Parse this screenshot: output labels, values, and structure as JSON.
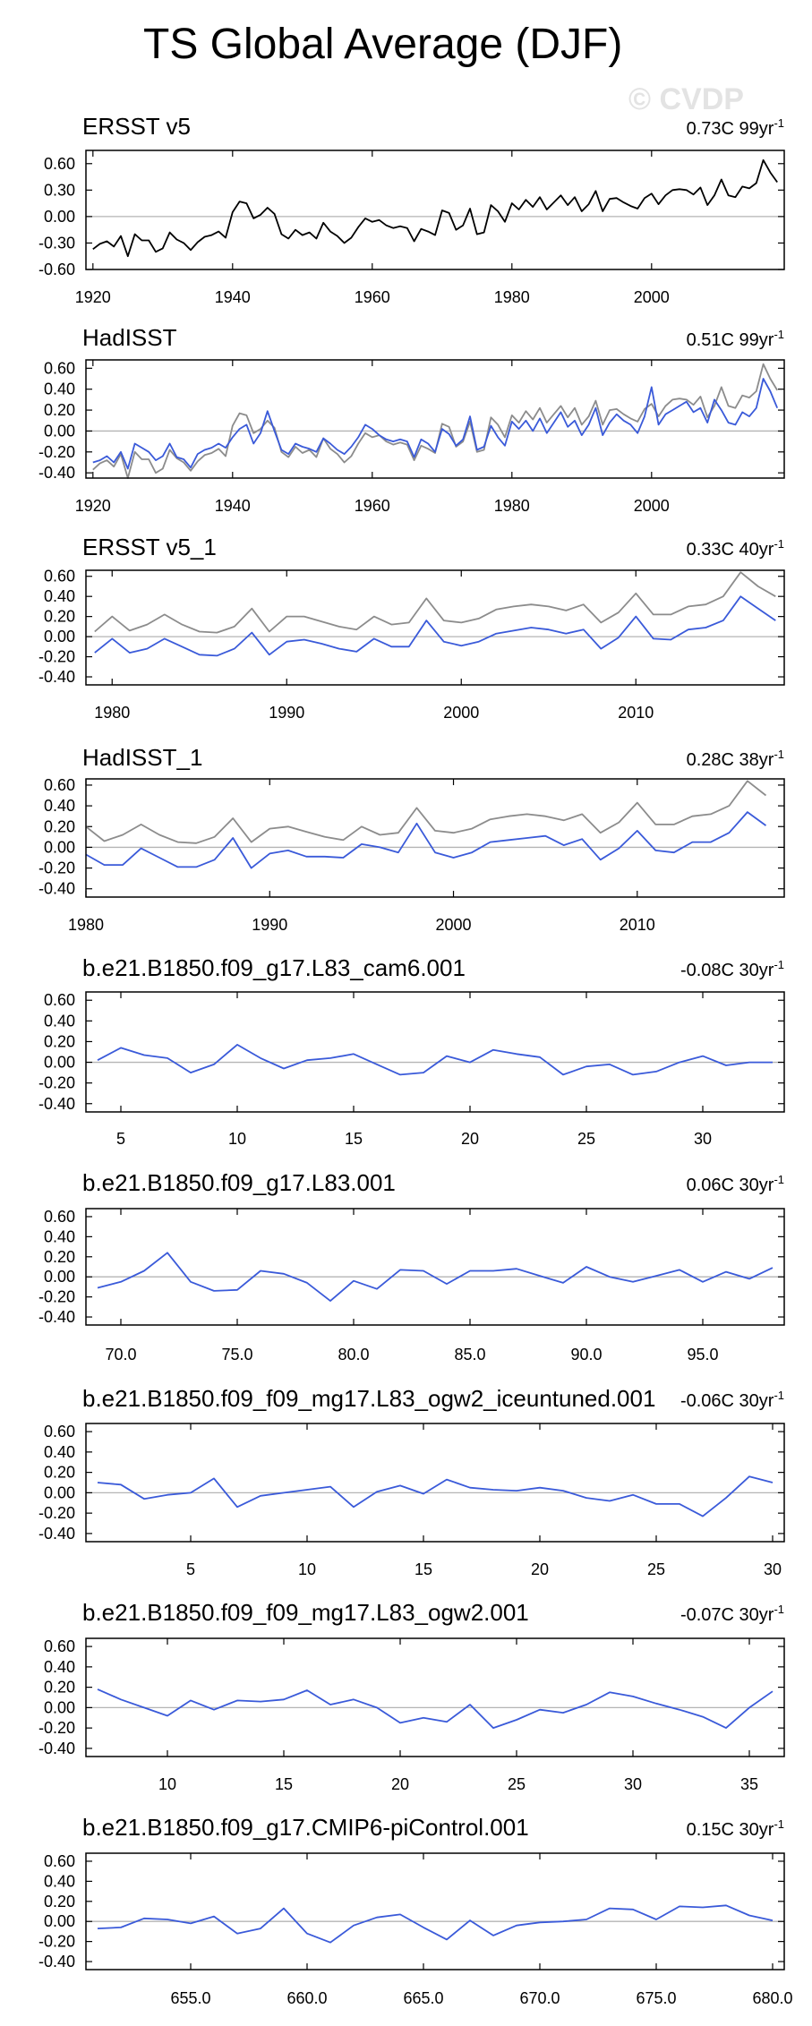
{
  "figure": {
    "title": "TS Global Average (DJF)",
    "watermark": "© CVDP"
  },
  "colors": {
    "observed": "#000000",
    "model": "#3a5ad9",
    "reference": "#8c8c8c",
    "zero_line": "#b4b4b4"
  },
  "chart_data": [
    {
      "type": "line",
      "title": "ERSST v5",
      "trend_value": "0.73C 99yr",
      "trend_exp": "-1",
      "xlim": [
        1919,
        2019
      ],
      "ylim": [
        -0.6,
        0.75
      ],
      "xticks": [
        1920,
        1940,
        1960,
        1980,
        2000
      ],
      "xtick_labels": [
        "1920",
        "1940",
        "1960",
        "1980",
        "2000"
      ],
      "yticks": [
        0.6,
        0.3,
        0.0,
        -0.3,
        -0.6
      ],
      "ytick_labels": [
        "0.60",
        "0.30",
        "0.00",
        "-0.30",
        "-0.60"
      ],
      "series": [
        {
          "color": "#000000",
          "x_start": 1920,
          "values": [
            -0.37,
            -0.31,
            -0.28,
            -0.34,
            -0.22,
            -0.45,
            -0.2,
            -0.27,
            -0.27,
            -0.4,
            -0.36,
            -0.18,
            -0.26,
            -0.3,
            -0.38,
            -0.29,
            -0.23,
            -0.21,
            -0.17,
            -0.24,
            0.05,
            0.17,
            0.15,
            -0.02,
            0.02,
            0.1,
            0.03,
            -0.2,
            -0.25,
            -0.15,
            -0.21,
            -0.18,
            -0.25,
            -0.07,
            -0.17,
            -0.22,
            -0.3,
            -0.24,
            -0.12,
            -0.02,
            -0.06,
            -0.04,
            -0.1,
            -0.13,
            -0.11,
            -0.13,
            -0.28,
            -0.14,
            -0.17,
            -0.21,
            0.07,
            0.04,
            -0.15,
            -0.1,
            0.09,
            -0.2,
            -0.18,
            0.13,
            0.06,
            -0.06,
            0.15,
            0.08,
            0.19,
            0.11,
            0.22,
            0.08,
            0.16,
            0.24,
            0.13,
            0.22,
            0.06,
            0.14,
            0.29,
            0.06,
            0.2,
            0.21,
            0.16,
            0.12,
            0.09,
            0.21,
            0.26,
            0.14,
            0.24,
            0.3,
            0.31,
            0.3,
            0.25,
            0.33,
            0.13,
            0.24,
            0.42,
            0.24,
            0.22,
            0.34,
            0.32,
            0.38,
            0.64,
            0.5,
            0.39
          ]
        }
      ]
    },
    {
      "type": "line",
      "title": "HadISST",
      "trend_value": "0.51C 99yr",
      "trend_exp": "-1",
      "xlim": [
        1919,
        2019
      ],
      "ylim": [
        -0.45,
        0.68
      ],
      "xticks": [
        1920,
        1940,
        1960,
        1980,
        2000
      ],
      "xtick_labels": [
        "1920",
        "1940",
        "1960",
        "1980",
        "2000"
      ],
      "yticks": [
        0.6,
        0.4,
        0.2,
        0.0,
        -0.2,
        -0.4
      ],
      "ytick_labels": [
        "0.60",
        "0.40",
        "0.20",
        "0.00",
        "-0.20",
        "-0.40"
      ],
      "series": [
        {
          "color": "#8c8c8c",
          "x_start": 1920,
          "values": [
            -0.37,
            -0.31,
            -0.28,
            -0.34,
            -0.22,
            -0.45,
            -0.2,
            -0.27,
            -0.27,
            -0.4,
            -0.36,
            -0.18,
            -0.26,
            -0.3,
            -0.38,
            -0.29,
            -0.23,
            -0.21,
            -0.17,
            -0.24,
            0.05,
            0.17,
            0.15,
            -0.02,
            0.02,
            0.1,
            0.03,
            -0.2,
            -0.25,
            -0.15,
            -0.21,
            -0.18,
            -0.25,
            -0.07,
            -0.17,
            -0.22,
            -0.3,
            -0.24,
            -0.12,
            -0.02,
            -0.06,
            -0.04,
            -0.1,
            -0.13,
            -0.11,
            -0.13,
            -0.28,
            -0.14,
            -0.17,
            -0.21,
            0.07,
            0.04,
            -0.15,
            -0.1,
            0.09,
            -0.2,
            -0.18,
            0.13,
            0.06,
            -0.06,
            0.15,
            0.08,
            0.19,
            0.11,
            0.22,
            0.08,
            0.16,
            0.24,
            0.13,
            0.22,
            0.06,
            0.14,
            0.29,
            0.06,
            0.2,
            0.21,
            0.16,
            0.12,
            0.09,
            0.21,
            0.26,
            0.14,
            0.24,
            0.3,
            0.31,
            0.3,
            0.25,
            0.33,
            0.13,
            0.24,
            0.42,
            0.24,
            0.22,
            0.34,
            0.32,
            0.38,
            0.64,
            0.5,
            0.39
          ]
        },
        {
          "color": "#3a5ad9",
          "x_start": 1920,
          "values": [
            -0.3,
            -0.28,
            -0.24,
            -0.3,
            -0.2,
            -0.36,
            -0.12,
            -0.16,
            -0.2,
            -0.28,
            -0.24,
            -0.12,
            -0.25,
            -0.27,
            -0.35,
            -0.22,
            -0.18,
            -0.16,
            -0.12,
            -0.16,
            -0.06,
            0.02,
            0.06,
            -0.12,
            -0.02,
            0.19,
            0.0,
            -0.18,
            -0.22,
            -0.12,
            -0.15,
            -0.17,
            -0.2,
            -0.07,
            -0.12,
            -0.18,
            -0.22,
            -0.15,
            -0.06,
            0.06,
            0.02,
            -0.04,
            -0.08,
            -0.1,
            -0.08,
            -0.1,
            -0.25,
            -0.08,
            -0.12,
            -0.2,
            0.02,
            -0.03,
            -0.14,
            -0.08,
            0.14,
            -0.18,
            -0.15,
            0.05,
            -0.06,
            -0.14,
            0.09,
            0.02,
            0.1,
            0.0,
            0.12,
            -0.02,
            0.08,
            0.18,
            0.04,
            0.1,
            -0.04,
            0.06,
            0.22,
            -0.04,
            0.08,
            0.16,
            0.1,
            0.06,
            -0.02,
            0.14,
            0.42,
            0.06,
            0.16,
            0.2,
            0.24,
            0.28,
            0.18,
            0.22,
            0.08,
            0.3,
            0.2,
            0.08,
            0.06,
            0.18,
            0.14,
            0.22,
            0.5,
            0.38,
            0.22
          ]
        }
      ]
    },
    {
      "type": "line",
      "title": "ERSST v5_1",
      "trend_value": "0.33C 40yr",
      "trend_exp": "-1",
      "xlim": [
        1978.5,
        2018.5
      ],
      "ylim": [
        -0.48,
        0.66
      ],
      "xticks": [
        1980,
        1990,
        2000,
        2010
      ],
      "xtick_labels": [
        "1980",
        "1990",
        "2000",
        "2010"
      ],
      "yticks": [
        0.6,
        0.4,
        0.2,
        0.0,
        -0.2,
        -0.4
      ],
      "ytick_labels": [
        "0.60",
        "0.40",
        "0.20",
        "0.00",
        "-0.20",
        "-0.40"
      ],
      "series": [
        {
          "color": "#8c8c8c",
          "x_start": 1979,
          "values": [
            0.05,
            0.2,
            0.06,
            0.12,
            0.22,
            0.12,
            0.05,
            0.04,
            0.1,
            0.28,
            0.05,
            0.2,
            0.2,
            0.15,
            0.1,
            0.07,
            0.2,
            0.12,
            0.14,
            0.38,
            0.16,
            0.14,
            0.18,
            0.27,
            0.3,
            0.32,
            0.3,
            0.26,
            0.32,
            0.14,
            0.24,
            0.43,
            0.22,
            0.22,
            0.3,
            0.32,
            0.4,
            0.64,
            0.5,
            0.4
          ]
        },
        {
          "color": "#3a5ad9",
          "x_start": 1979,
          "values": [
            -0.16,
            -0.02,
            -0.16,
            -0.12,
            -0.02,
            -0.1,
            -0.18,
            -0.19,
            -0.12,
            0.04,
            -0.18,
            -0.05,
            -0.03,
            -0.07,
            -0.12,
            -0.15,
            -0.02,
            -0.1,
            -0.1,
            0.16,
            -0.05,
            -0.09,
            -0.05,
            0.03,
            0.06,
            0.09,
            0.07,
            0.03,
            0.07,
            -0.12,
            -0.01,
            0.2,
            -0.02,
            -0.03,
            0.07,
            0.09,
            0.16,
            0.4,
            0.28,
            0.16
          ]
        }
      ]
    },
    {
      "type": "line",
      "title": "HadISST_1",
      "trend_value": "0.28C 38yr",
      "trend_exp": "-1",
      "xlim": [
        1980,
        2018
      ],
      "ylim": [
        -0.48,
        0.66
      ],
      "xticks": [
        1980,
        1990,
        2000,
        2010
      ],
      "xtick_labels": [
        "1980",
        "1990",
        "2000",
        "2010"
      ],
      "yticks": [
        0.6,
        0.4,
        0.2,
        0.0,
        -0.2,
        -0.4
      ],
      "ytick_labels": [
        "0.60",
        "0.40",
        "0.20",
        "0.00",
        "-0.20",
        "-0.40"
      ],
      "series": [
        {
          "color": "#8c8c8c",
          "x_start": 1980,
          "values": [
            0.2,
            0.06,
            0.12,
            0.22,
            0.12,
            0.05,
            0.04,
            0.1,
            0.28,
            0.05,
            0.18,
            0.2,
            0.15,
            0.1,
            0.07,
            0.2,
            0.12,
            0.14,
            0.38,
            0.16,
            0.14,
            0.18,
            0.27,
            0.3,
            0.32,
            0.3,
            0.26,
            0.32,
            0.14,
            0.24,
            0.43,
            0.22,
            0.22,
            0.3,
            0.32,
            0.4,
            0.64,
            0.5
          ]
        },
        {
          "color": "#3a5ad9",
          "x_start": 1980,
          "values": [
            -0.07,
            -0.17,
            -0.17,
            -0.01,
            -0.1,
            -0.19,
            -0.19,
            -0.12,
            0.09,
            -0.2,
            -0.06,
            -0.03,
            -0.09,
            -0.09,
            -0.1,
            0.03,
            0.0,
            -0.05,
            0.23,
            -0.05,
            -0.1,
            -0.05,
            0.05,
            0.07,
            0.09,
            0.11,
            0.02,
            0.08,
            -0.12,
            -0.01,
            0.16,
            -0.03,
            -0.05,
            0.05,
            0.05,
            0.14,
            0.34,
            0.21
          ]
        }
      ]
    },
    {
      "type": "line",
      "title": "b.e21.B1850.f09_g17.L83_cam6.001",
      "trend_value": "-0.08C 30yr",
      "trend_exp": "-1",
      "xlim": [
        3.5,
        33.5
      ],
      "ylim": [
        -0.48,
        0.68
      ],
      "xticks": [
        5,
        10,
        15,
        20,
        25,
        30
      ],
      "xtick_labels": [
        "5",
        "10",
        "15",
        "20",
        "25",
        "30"
      ],
      "yticks": [
        0.6,
        0.4,
        0.2,
        0.0,
        -0.2,
        -0.4
      ],
      "ytick_labels": [
        "0.60",
        "0.40",
        "0.20",
        "0.00",
        "-0.20",
        "-0.40"
      ],
      "series": [
        {
          "color": "#3a5ad9",
          "x_start": 4,
          "values": [
            0.02,
            0.14,
            0.07,
            0.04,
            -0.1,
            -0.02,
            0.17,
            0.04,
            -0.06,
            0.02,
            0.04,
            0.08,
            -0.02,
            -0.12,
            -0.1,
            0.06,
            0.0,
            0.12,
            0.08,
            0.05,
            -0.12,
            -0.04,
            -0.02,
            -0.12,
            -0.09,
            0.0,
            0.06,
            -0.03,
            0.0,
            0.0
          ]
        }
      ]
    },
    {
      "type": "line",
      "title": "b.e21.B1850.f09_g17.L83.001",
      "trend_value": "0.06C 30yr",
      "trend_exp": "-1",
      "xlim": [
        68.5,
        98.5
      ],
      "ylim": [
        -0.48,
        0.68
      ],
      "xticks": [
        70,
        75,
        80,
        85,
        90,
        95
      ],
      "xtick_labels": [
        "70.0",
        "75.0",
        "80.0",
        "85.0",
        "90.0",
        "95.0"
      ],
      "yticks": [
        0.6,
        0.4,
        0.2,
        0.0,
        -0.2,
        -0.4
      ],
      "ytick_labels": [
        "0.60",
        "0.40",
        "0.20",
        "0.00",
        "-0.20",
        "-0.40"
      ],
      "series": [
        {
          "color": "#3a5ad9",
          "x_start": 69,
          "values": [
            -0.11,
            -0.05,
            0.06,
            0.24,
            -0.05,
            -0.14,
            -0.13,
            0.06,
            0.03,
            -0.06,
            -0.24,
            -0.04,
            -0.12,
            0.07,
            0.06,
            -0.07,
            0.06,
            0.06,
            0.08,
            0.01,
            -0.06,
            0.1,
            0.0,
            -0.05,
            0.01,
            0.07,
            -0.05,
            0.05,
            -0.02,
            0.09
          ]
        }
      ]
    },
    {
      "type": "line",
      "title": "b.e21.B1850.f09_f09_mg17.L83_ogw2_iceuntuned.001",
      "trend_value": "-0.06C 30yr",
      "trend_exp": "-1",
      "xlim": [
        0.5,
        30.5
      ],
      "ylim": [
        -0.48,
        0.68
      ],
      "xticks": [
        5,
        10,
        15,
        20,
        25,
        30
      ],
      "xtick_labels": [
        "5",
        "10",
        "15",
        "20",
        "25",
        "30"
      ],
      "yticks": [
        0.6,
        0.4,
        0.2,
        0.0,
        -0.2,
        -0.4
      ],
      "ytick_labels": [
        "0.60",
        "0.40",
        "0.20",
        "0.00",
        "-0.20",
        "-0.40"
      ],
      "series": [
        {
          "color": "#3a5ad9",
          "x_start": 1,
          "values": [
            0.1,
            0.08,
            -0.06,
            -0.02,
            0.0,
            0.14,
            -0.14,
            -0.03,
            0.0,
            0.03,
            0.06,
            -0.14,
            0.01,
            0.07,
            -0.01,
            0.13,
            0.05,
            0.03,
            0.02,
            0.05,
            0.02,
            -0.05,
            -0.08,
            -0.02,
            -0.11,
            -0.11,
            -0.23,
            -0.05,
            0.16,
            0.1
          ]
        }
      ]
    },
    {
      "type": "line",
      "title": "b.e21.B1850.f09_f09_mg17.L83_ogw2.001",
      "trend_value": "-0.07C 30yr",
      "trend_exp": "-1",
      "xlim": [
        6.5,
        36.5
      ],
      "ylim": [
        -0.48,
        0.68
      ],
      "xticks": [
        10,
        15,
        20,
        25,
        30,
        35
      ],
      "xtick_labels": [
        "10",
        "15",
        "20",
        "25",
        "30",
        "35"
      ],
      "yticks": [
        0.6,
        0.4,
        0.2,
        0.0,
        -0.2,
        -0.4
      ],
      "ytick_labels": [
        "0.60",
        "0.40",
        "0.20",
        "0.00",
        "-0.20",
        "-0.40"
      ],
      "series": [
        {
          "color": "#3a5ad9",
          "x_start": 7,
          "values": [
            0.18,
            0.08,
            0.0,
            -0.08,
            0.07,
            -0.02,
            0.07,
            0.06,
            0.08,
            0.17,
            0.03,
            0.08,
            0.0,
            -0.15,
            -0.1,
            -0.14,
            0.03,
            -0.2,
            -0.12,
            -0.02,
            -0.05,
            0.03,
            0.15,
            0.11,
            0.04,
            -0.02,
            -0.09,
            -0.2,
            0.0,
            0.16
          ]
        }
      ]
    },
    {
      "type": "line",
      "title": "b.e21.B1850.f09_g17.CMIP6-piControl.001",
      "trend_value": "0.15C 30yr",
      "trend_exp": "-1",
      "xlim": [
        650.5,
        680.5
      ],
      "ylim": [
        -0.48,
        0.68
      ],
      "xticks": [
        655,
        660,
        665,
        670,
        675,
        680
      ],
      "xtick_labels": [
        "655.0",
        "660.0",
        "665.0",
        "670.0",
        "675.0",
        "680.0"
      ],
      "yticks": [
        0.6,
        0.4,
        0.2,
        0.0,
        -0.2,
        -0.4
      ],
      "ytick_labels": [
        "0.60",
        "0.40",
        "0.20",
        "0.00",
        "-0.20",
        "-0.40"
      ],
      "series": [
        {
          "color": "#3a5ad9",
          "x_start": 651,
          "values": [
            -0.07,
            -0.06,
            0.03,
            0.02,
            -0.02,
            0.05,
            -0.12,
            -0.07,
            0.13,
            -0.12,
            -0.21,
            -0.04,
            0.04,
            0.07,
            -0.06,
            -0.18,
            0.01,
            -0.14,
            -0.04,
            -0.01,
            0.0,
            0.02,
            0.13,
            0.12,
            0.02,
            0.15,
            0.14,
            0.16,
            0.06,
            0.01
          ]
        }
      ]
    }
  ]
}
